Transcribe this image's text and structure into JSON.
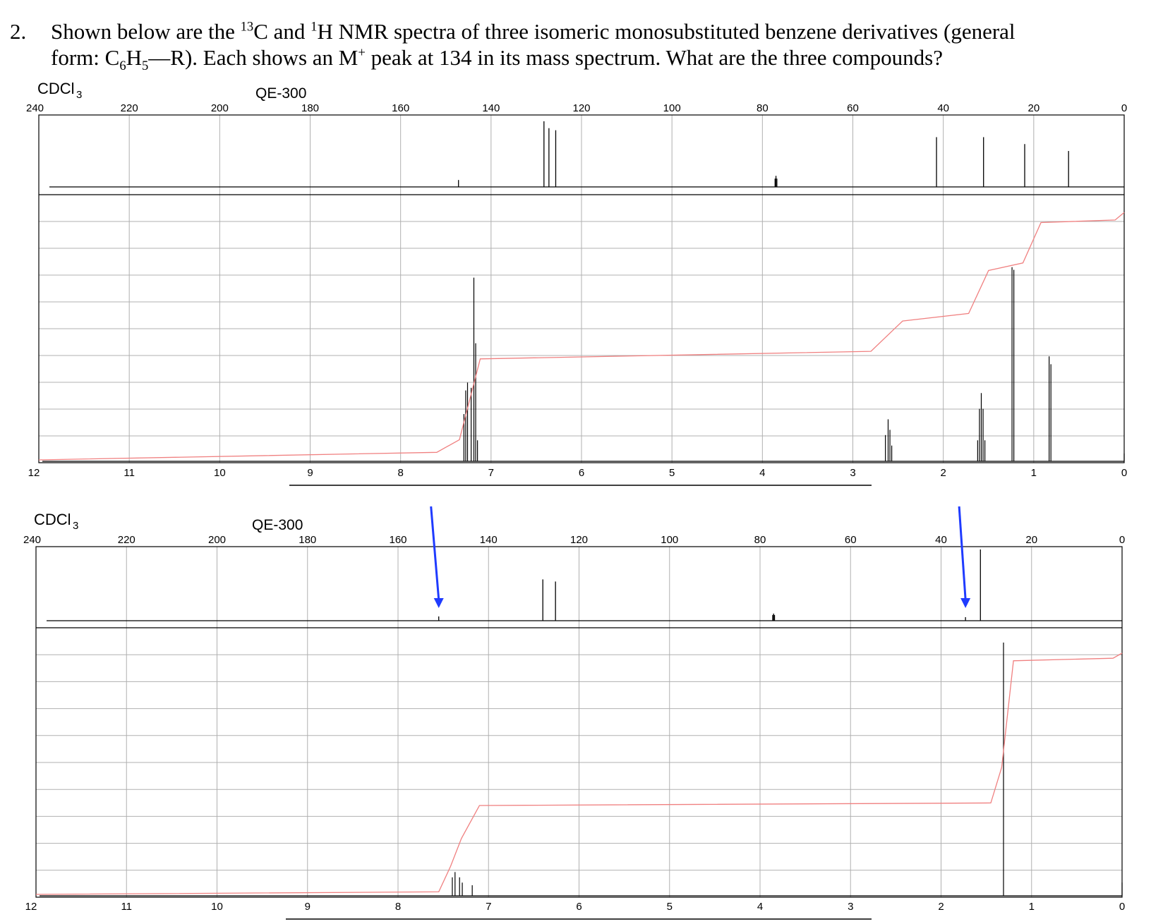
{
  "question": {
    "number": "2.",
    "line1_a": "Shown below are the ",
    "sup1": "13",
    "line1_b": "C and ",
    "sup2": "1",
    "line1_c": "H NMR spectra of three isomeric monosubstituted benzene derivatives (general",
    "line2_a": "form: C",
    "sub1": "6",
    "line2_b": "H",
    "sub2": "5",
    "line2_c": "—R). Each shows an M",
    "sup3": "+",
    "line2_d": " peak at 134 in its mass spectrum. What are the three compounds?"
  },
  "colors": {
    "spectrum": "#000000",
    "integral": "#f08080",
    "grid": "#b0b0b0",
    "arrow": "#1f3bff"
  },
  "chart_data": [
    {
      "type": "line",
      "solvent": "CDCl3",
      "instrument": "QE-300",
      "carbon_axis": {
        "ticks": [
          240,
          220,
          200,
          180,
          160,
          140,
          120,
          100,
          80,
          60,
          40,
          20,
          0
        ],
        "xlim": [
          240,
          0
        ]
      },
      "proton_axis": {
        "ticks": [
          12,
          11,
          10,
          9,
          8,
          7,
          6,
          5,
          4,
          3,
          2,
          1,
          0
        ],
        "xlim": [
          12,
          0
        ]
      },
      "carbon_peaks": [
        {
          "ppm": 147.2,
          "h": 0.1
        },
        {
          "ppm": 128.3,
          "h": 0.95
        },
        {
          "ppm": 127.2,
          "h": 0.85
        },
        {
          "ppm": 125.7,
          "h": 0.82
        },
        {
          "ppm": 77.2,
          "h": 0.12
        },
        {
          "ppm": 77.0,
          "h": 0.16
        },
        {
          "ppm": 76.8,
          "h": 0.12
        },
        {
          "ppm": 41.5,
          "h": 0.72
        },
        {
          "ppm": 31.1,
          "h": 0.72
        },
        {
          "ppm": 22.0,
          "h": 0.62
        },
        {
          "ppm": 12.3,
          "h": 0.52
        }
      ],
      "proton_peaks": [
        {
          "ppm": 7.3,
          "h": 0.18
        },
        {
          "ppm": 7.28,
          "h": 0.27
        },
        {
          "ppm": 7.26,
          "h": 0.3
        },
        {
          "ppm": 7.22,
          "h": 0.28
        },
        {
          "ppm": 7.19,
          "h": 0.7
        },
        {
          "ppm": 7.17,
          "h": 0.45
        },
        {
          "ppm": 7.15,
          "h": 0.08
        },
        {
          "ppm": 2.64,
          "h": 0.1
        },
        {
          "ppm": 2.61,
          "h": 0.16
        },
        {
          "ppm": 2.59,
          "h": 0.12
        },
        {
          "ppm": 2.57,
          "h": 0.06
        },
        {
          "ppm": 1.62,
          "h": 0.08
        },
        {
          "ppm": 1.6,
          "h": 0.2
        },
        {
          "ppm": 1.58,
          "h": 0.26
        },
        {
          "ppm": 1.56,
          "h": 0.2
        },
        {
          "ppm": 1.54,
          "h": 0.08
        },
        {
          "ppm": 1.24,
          "h": 0.74
        },
        {
          "ppm": 1.22,
          "h": 0.73
        },
        {
          "ppm": 0.83,
          "h": 0.4
        },
        {
          "ppm": 0.81,
          "h": 0.37
        },
        {
          "ppm": 0.0,
          "h": 0.03
        }
      ],
      "integral": [
        {
          "ppm": 12.0,
          "v": 0.0
        },
        {
          "ppm": 7.6,
          "v": 0.03
        },
        {
          "ppm": 7.35,
          "v": 0.08
        },
        {
          "ppm": 7.12,
          "v": 0.4
        },
        {
          "ppm": 2.8,
          "v": 0.43
        },
        {
          "ppm": 2.45,
          "v": 0.55
        },
        {
          "ppm": 1.72,
          "v": 0.58
        },
        {
          "ppm": 1.5,
          "v": 0.75
        },
        {
          "ppm": 1.12,
          "v": 0.78
        },
        {
          "ppm": 0.92,
          "v": 0.94
        },
        {
          "ppm": 0.1,
          "v": 0.95
        },
        {
          "ppm": -0.02,
          "v": 0.98
        },
        {
          "ppm": -0.5,
          "v": 0.98
        }
      ]
    },
    {
      "type": "line",
      "solvent": "CDCl3",
      "instrument": "QE-300",
      "carbon_axis": {
        "ticks": [
          240,
          220,
          200,
          180,
          160,
          140,
          120,
          100,
          80,
          60,
          40,
          20,
          0
        ],
        "xlim": [
          240,
          0
        ]
      },
      "proton_axis": {
        "ticks": [
          12,
          11,
          10,
          9,
          8,
          7,
          6,
          5,
          4,
          3,
          2,
          1,
          0
        ],
        "xlim": [
          12,
          0
        ]
      },
      "carbon_peaks": [
        {
          "ppm": 151.0,
          "h": 0.06
        },
        {
          "ppm": 128.0,
          "h": 0.58
        },
        {
          "ppm": 125.2,
          "h": 0.55
        },
        {
          "ppm": 77.2,
          "h": 0.08
        },
        {
          "ppm": 77.0,
          "h": 0.1
        },
        {
          "ppm": 76.8,
          "h": 0.08
        },
        {
          "ppm": 34.6,
          "h": 0.05
        },
        {
          "ppm": 31.3,
          "h": 1.0
        }
      ],
      "proton_peaks": [
        {
          "ppm": 7.4,
          "h": 0.07
        },
        {
          "ppm": 7.37,
          "h": 0.09
        },
        {
          "ppm": 7.32,
          "h": 0.07
        },
        {
          "ppm": 7.29,
          "h": 0.05
        },
        {
          "ppm": 7.18,
          "h": 0.04
        },
        {
          "ppm": 1.31,
          "h": 0.96
        },
        {
          "ppm": 0.0,
          "h": 0.05
        }
      ],
      "integral": [
        {
          "ppm": 12.0,
          "v": 0.0
        },
        {
          "ppm": 7.55,
          "v": 0.01
        },
        {
          "ppm": 7.42,
          "v": 0.11
        },
        {
          "ppm": 7.3,
          "v": 0.22
        },
        {
          "ppm": 7.1,
          "v": 0.35
        },
        {
          "ppm": 1.45,
          "v": 0.36
        },
        {
          "ppm": 1.33,
          "v": 0.5
        },
        {
          "ppm": 1.2,
          "v": 0.92
        },
        {
          "ppm": 0.1,
          "v": 0.93
        },
        {
          "ppm": -0.02,
          "v": 0.95
        },
        {
          "ppm": -0.5,
          "v": 0.95
        }
      ],
      "arrows_at_carbon_ppm": [
        151.0,
        34.6
      ]
    }
  ]
}
